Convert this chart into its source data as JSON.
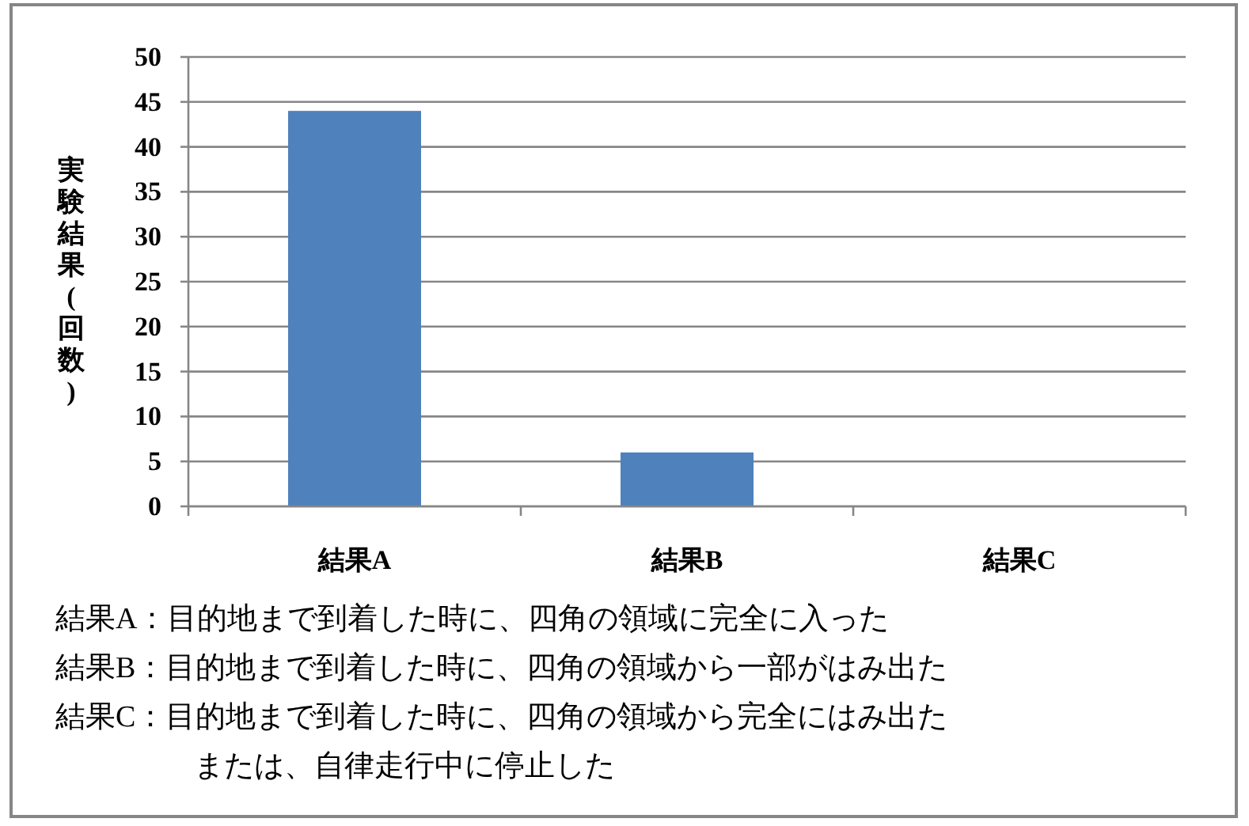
{
  "chart_data": {
    "type": "bar",
    "ylabel": "実験結果(回数)",
    "categories": [
      "結果A",
      "結果B",
      "結果C"
    ],
    "values": [
      44,
      6,
      0
    ],
    "color": "#4f81bd",
    "ylim": [
      0,
      50
    ],
    "yticks": [
      0,
      5,
      10,
      15,
      20,
      25,
      30,
      35,
      40,
      45,
      50
    ],
    "grid": "y",
    "annotations": [
      "結果A：目的地まで到着した時に、四角の領域に完全に入った",
      "結果B：目的地まで到着した時に、四角の領域から一部がはみ出た",
      "結果C：目的地まで到着した時に、四角の領域から完全にはみ出たまたは、自律走行中に停止した"
    ]
  }
}
